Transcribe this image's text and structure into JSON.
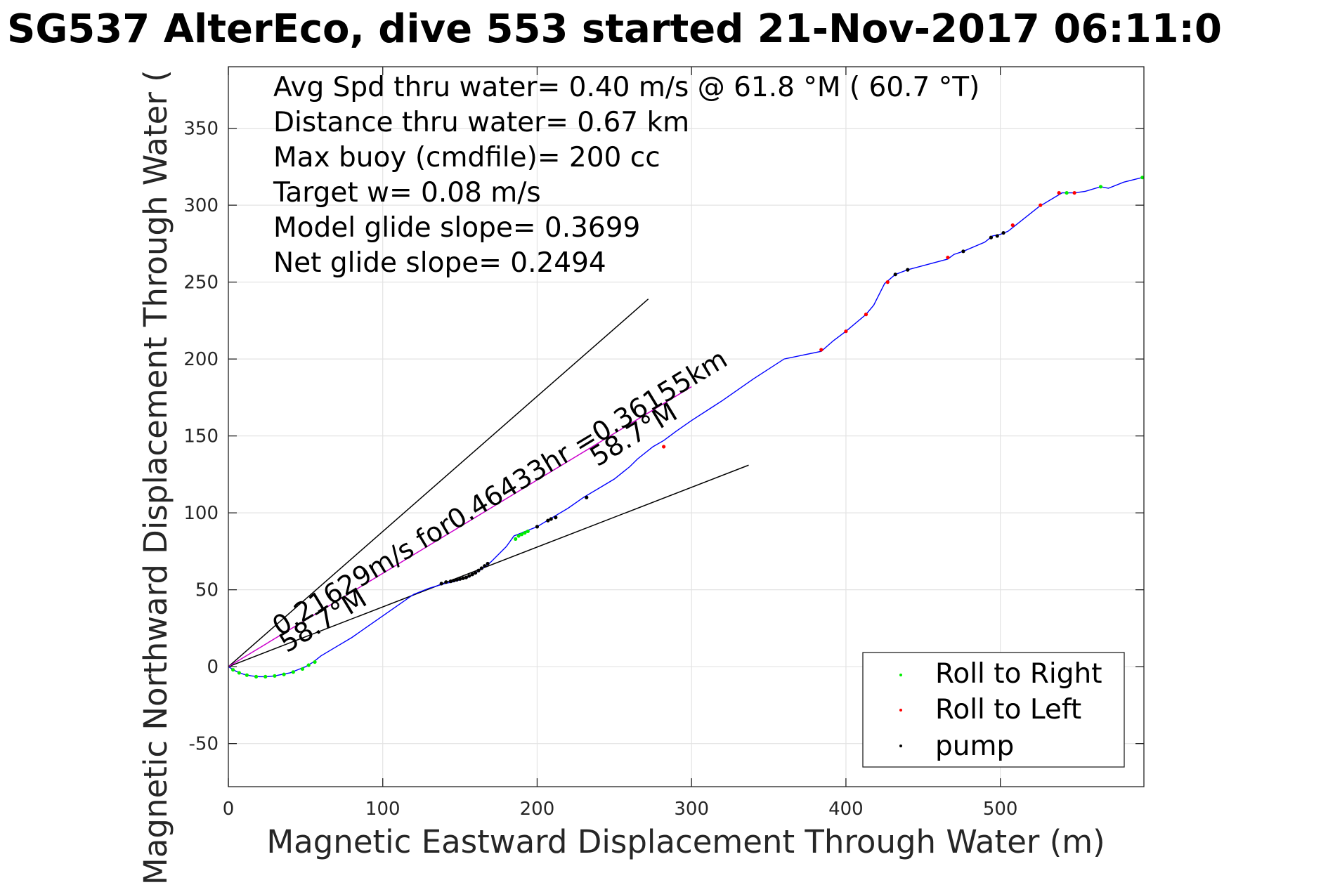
{
  "chart_data": {
    "type": "scatter",
    "title": "SG537 AlterEco, dive 553 started 21-Nov-2017 06:11:0",
    "xlabel": "Magnetic Eastward Displacement Through Water (m)",
    "ylabel": "Magnetic Northward Displacement Through Water (",
    "xlim": [
      0,
      593
    ],
    "ylim": [
      -78,
      390
    ],
    "grid": true,
    "legend_position": "bottom-right",
    "x_ticks": [
      0,
      100,
      200,
      300,
      400,
      500
    ],
    "x_tick_labels": [
      "0",
      "100",
      "200",
      "300",
      "400",
      "500"
    ],
    "y_ticks": [
      -50,
      0,
      50,
      100,
      150,
      200,
      250,
      300,
      350
    ],
    "y_tick_labels": [
      "-50",
      "0",
      "50",
      "100",
      "150",
      "200",
      "250",
      "300",
      "350"
    ],
    "colors": {
      "track": "#0000ff",
      "roll_right": "#00ee00",
      "roll_left": "#ff0000",
      "pump": "#000000",
      "mean_current": "#cc00cc",
      "reference_lines": "#000000",
      "grid": "#e3e3e3"
    },
    "info_lines": [
      "Avg Spd thru water=  0.40 m/s @  61.8 °M ( 60.7 °T)",
      "Distance thru water=  0.67 km",
      "Max buoy (cmdfile)= 200 cc",
      "Target w= 0.08 m/s",
      "Model glide slope= 0.3699",
      "Net glide slope= 0.2494"
    ],
    "annotations": {
      "current_text": "0.21629m/s for0.46433hr =0.36155km",
      "heading_label_upper": "58.7°M",
      "heading_label_lower": "58.7°M"
    },
    "reference_lines": [
      {
        "x": [
          0,
          272
        ],
        "y": [
          0,
          239
        ]
      },
      {
        "x": [
          0,
          337
        ],
        "y": [
          0,
          131
        ]
      },
      {
        "x": [
          0,
          300
        ],
        "y": [
          0,
          182
        ]
      }
    ],
    "series": [
      {
        "name": "track",
        "style": "line",
        "x": [
          0,
          5,
          10,
          15,
          20,
          25,
          30,
          35,
          40,
          45,
          50,
          55,
          60,
          70,
          80,
          90,
          100,
          110,
          120,
          130,
          140,
          145,
          150,
          155,
          160,
          165,
          170,
          180,
          185,
          190,
          195,
          200,
          210,
          220,
          230,
          240,
          250,
          260,
          265,
          275,
          282,
          290,
          300,
          320,
          340,
          360,
          384,
          392,
          400,
          413,
          418,
          425,
          432,
          440,
          466,
          470,
          476,
          490,
          495,
          500,
          505,
          510,
          525,
          540,
          548,
          555,
          565,
          570,
          580,
          592
        ],
        "y": [
          0,
          -3,
          -5,
          -6,
          -6.5,
          -6.5,
          -6,
          -5,
          -4,
          -2,
          0,
          3,
          7,
          13,
          19,
          26,
          33,
          40,
          47,
          51,
          54,
          55,
          56.5,
          58,
          61,
          64,
          68,
          78,
          85,
          87,
          89,
          91,
          97,
          103,
          110,
          116,
          122,
          130,
          135,
          143,
          147,
          153,
          160,
          173,
          187,
          200,
          205,
          212,
          218,
          229,
          235,
          249,
          255,
          258,
          265,
          268,
          270,
          276,
          280,
          281,
          283,
          287,
          299,
          308,
          308,
          309,
          312,
          311,
          315,
          318
        ]
      },
      {
        "name": "Roll to Right",
        "style": "marker",
        "x": [
          3,
          7,
          12,
          18,
          24,
          30,
          36,
          42,
          48,
          52,
          56,
          186,
          188,
          190,
          192,
          194,
          543,
          565,
          592
        ],
        "y": [
          -2,
          -4,
          -5.5,
          -6.5,
          -6.5,
          -6,
          -5,
          -3.5,
          -1.5,
          1,
          3,
          83,
          85,
          86,
          87,
          88,
          308,
          312,
          318
        ]
      },
      {
        "name": "Roll to Left",
        "style": "marker",
        "x": [
          282,
          384,
          400,
          413,
          427,
          466,
          508,
          526,
          538,
          548
        ],
        "y": [
          143,
          206,
          218,
          229,
          250,
          266,
          287,
          300,
          308,
          308
        ]
      },
      {
        "name": "pump",
        "style": "marker",
        "x": [
          138,
          141,
          144,
          146,
          148,
          150,
          152,
          154,
          156,
          158,
          160,
          162,
          164,
          166,
          168,
          200,
          207,
          209,
          212,
          232,
          432,
          440,
          476,
          494,
          498,
          502
        ],
        "y": [
          54,
          55,
          55.5,
          56,
          56.5,
          57,
          57.5,
          58,
          59,
          60,
          61,
          62.5,
          64,
          65.5,
          67,
          91,
          95,
          96,
          97,
          110,
          255,
          258,
          270,
          279,
          280,
          282
        ]
      }
    ]
  }
}
